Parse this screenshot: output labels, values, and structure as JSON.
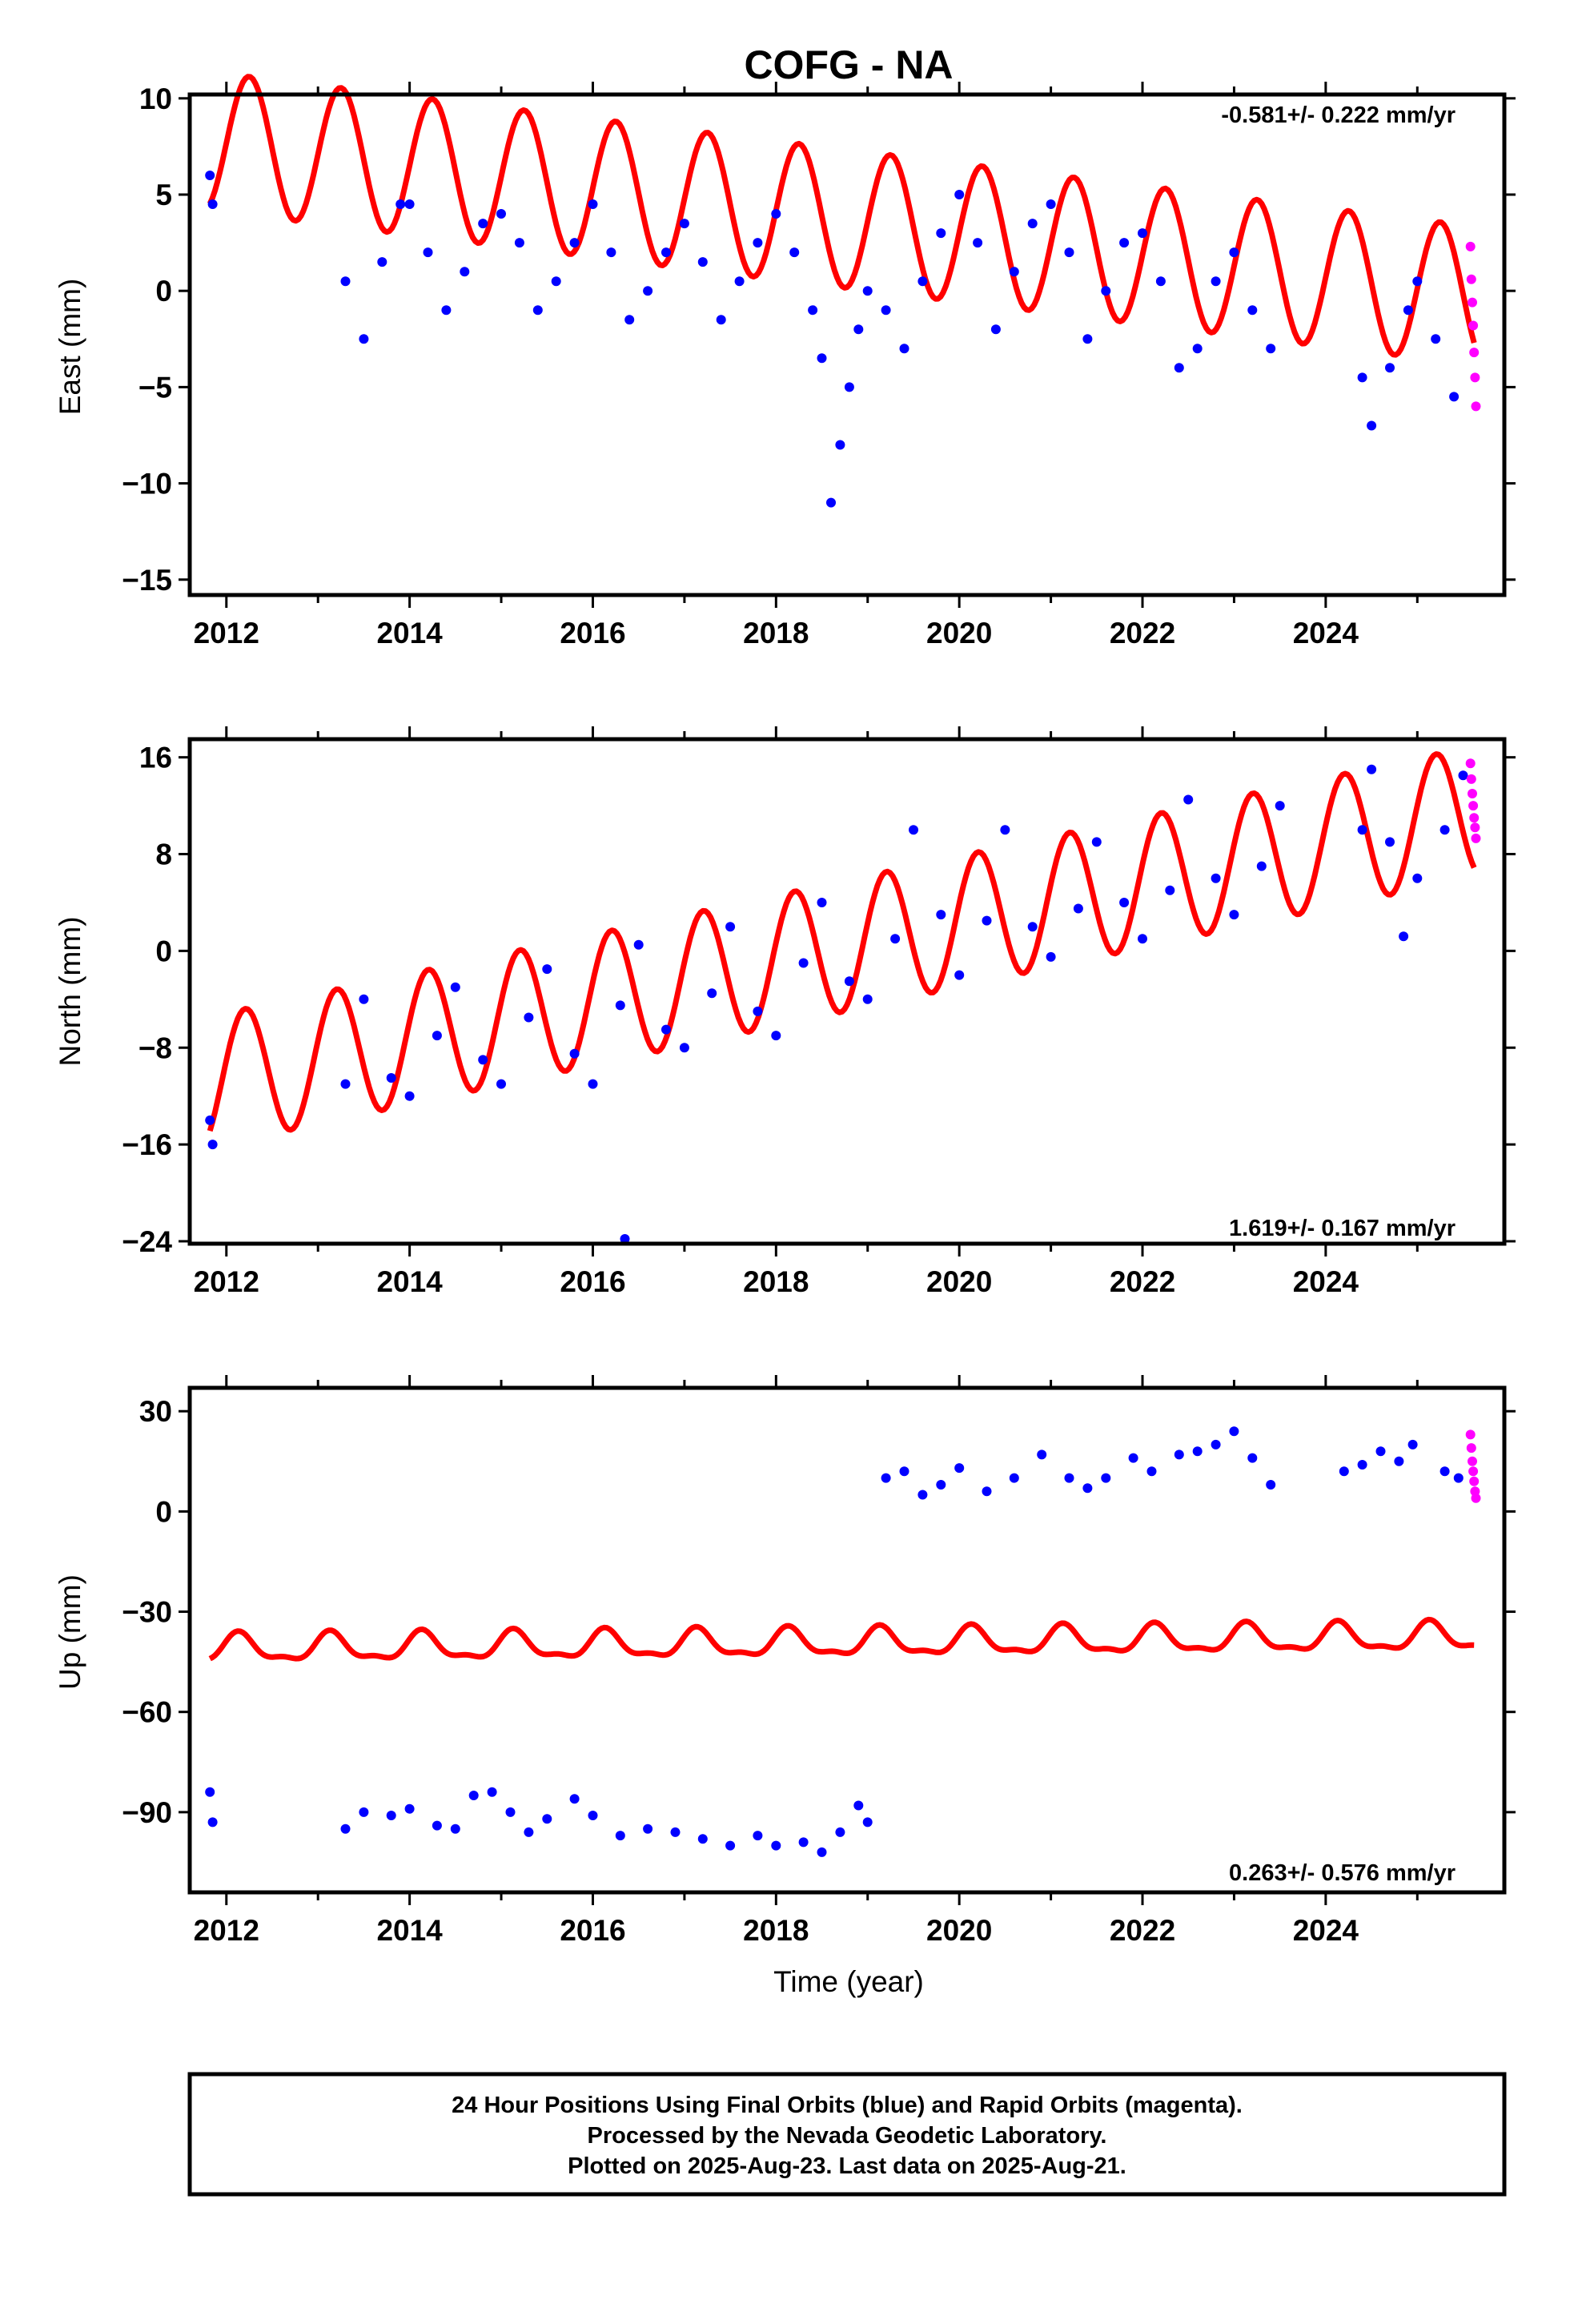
{
  "colors": {
    "final_orbits": "#0000ff",
    "rapid_orbits": "#ff00ff",
    "model": "#ff0000",
    "frame": "#000000"
  },
  "footer": {
    "line1": "24 Hour Positions Using Final Orbits (blue) and Rapid Orbits (magenta).",
    "line2": "Processed by the Nevada Geodetic Laboratory.",
    "line3": "Plotted on 2025-Aug-23. Last data on 2025-Aug-21."
  },
  "chart_data": [
    {
      "type": "scatter",
      "title": "COFG - NA",
      "xlabel": "",
      "ylabel": "East (mm)",
      "xlim": [
        2011.6,
        2025.95
      ],
      "ylim": [
        -15.8,
        10.2
      ],
      "xticks": [
        2012,
        2014,
        2016,
        2018,
        2020,
        2022,
        2024
      ],
      "yticks": [
        10,
        5,
        0,
        -5,
        -10,
        -15
      ],
      "yticklabels": [
        "10",
        "5",
        "0",
        "−5",
        "−10",
        "−15"
      ],
      "rate_label": "-0.581+/- 0.222 mm/yr",
      "rate_position": "top-right",
      "series": [
        {
          "role": "final_orbits",
          "x": [
            2011.82,
            2011.85,
            2013.3,
            2013.5,
            2013.7,
            2013.9,
            2014.0,
            2014.2,
            2014.4,
            2014.6,
            2014.8,
            2015.0,
            2015.2,
            2015.4,
            2015.6,
            2015.8,
            2016.0,
            2016.2,
            2016.4,
            2016.6,
            2016.8,
            2017.0,
            2017.2,
            2017.4,
            2017.6,
            2017.8,
            2018.0,
            2018.2,
            2018.4,
            2018.5,
            2018.6,
            2018.7,
            2018.8,
            2018.9,
            2019.0,
            2019.2,
            2019.4,
            2019.6,
            2019.8,
            2020.0,
            2020.2,
            2020.4,
            2020.6,
            2020.8,
            2021.0,
            2021.2,
            2021.4,
            2021.6,
            2021.8,
            2022.0,
            2022.2,
            2022.4,
            2022.6,
            2022.8,
            2023.0,
            2023.2,
            2023.4,
            2024.4,
            2024.5,
            2024.7,
            2024.9,
            2025.0,
            2025.2,
            2025.4
          ],
          "y": [
            6.0,
            4.5,
            0.5,
            -2.5,
            1.5,
            4.5,
            4.5,
            2.0,
            -1.0,
            1.0,
            3.5,
            4.0,
            2.5,
            -1.0,
            0.5,
            2.5,
            4.5,
            2.0,
            -1.5,
            0.0,
            2.0,
            3.5,
            1.5,
            -1.5,
            0.5,
            2.5,
            4.0,
            2.0,
            -1.0,
            -3.5,
            -11.0,
            -8.0,
            -5.0,
            -2.0,
            0.0,
            -1.0,
            -3.0,
            0.5,
            3.0,
            5.0,
            2.5,
            -2.0,
            1.0,
            3.5,
            4.5,
            2.0,
            -2.5,
            0.0,
            2.5,
            3.0,
            0.5,
            -4.0,
            -3.0,
            0.5,
            2.0,
            -1.0,
            -3.0,
            -4.5,
            -7.0,
            -4.0,
            -1.0,
            0.5,
            -2.5,
            -5.5
          ]
        },
        {
          "role": "rapid_orbits",
          "x": [
            2025.58,
            2025.59,
            2025.6,
            2025.61,
            2025.62,
            2025.63,
            2025.64
          ],
          "y": [
            2.3,
            0.6,
            -0.6,
            -1.8,
            -3.2,
            -4.5,
            -6.0
          ]
        }
      ],
      "model": {
        "mean": 3.9,
        "trend_per_year": -0.581,
        "amp_sin": 3.6,
        "amp_cos": 0.0,
        "start": 2011.82,
        "end": 2025.62
      }
    },
    {
      "type": "scatter",
      "title": "",
      "xlabel": "",
      "ylabel": "North (mm)",
      "xlim": [
        2011.6,
        2025.95
      ],
      "ylim": [
        -24.2,
        17.5
      ],
      "xticks": [
        2012,
        2014,
        2016,
        2018,
        2020,
        2022,
        2024
      ],
      "yticks": [
        16,
        8,
        0,
        -8,
        -16,
        -24
      ],
      "yticklabels": [
        "16",
        "8",
        "0",
        "−8",
        "−16",
        "−24"
      ],
      "rate_label": "1.619+/- 0.167 mm/yr",
      "rate_position": "bottom-right",
      "series": [
        {
          "role": "final_orbits",
          "x": [
            2011.82,
            2011.85,
            2013.3,
            2013.5,
            2013.8,
            2014.0,
            2014.3,
            2014.5,
            2014.8,
            2015.0,
            2015.3,
            2015.5,
            2015.8,
            2016.0,
            2016.3,
            2016.5,
            2016.8,
            2017.0,
            2017.3,
            2017.5,
            2017.8,
            2018.0,
            2018.3,
            2018.5,
            2018.8,
            2019.0,
            2019.3,
            2019.5,
            2019.8,
            2020.0,
            2020.3,
            2020.5,
            2020.8,
            2021.0,
            2021.3,
            2021.5,
            2021.8,
            2022.0,
            2022.3,
            2022.5,
            2022.8,
            2023.0,
            2023.3,
            2023.5,
            2024.4,
            2024.5,
            2024.7,
            2024.85,
            2025.0,
            2025.3,
            2025.5
          ],
          "y": [
            -14.0,
            -16.0,
            -11.0,
            -4.0,
            -10.5,
            -12.0,
            -7.0,
            -3.0,
            -9.0,
            -11.0,
            -5.5,
            -1.5,
            -8.5,
            -11.0,
            -4.5,
            0.5,
            -6.5,
            -8.0,
            -3.5,
            2.0,
            -5.0,
            -7.0,
            -1.0,
            4.0,
            -2.5,
            -4.0,
            1.0,
            10.0,
            3.0,
            -2.0,
            2.5,
            10.0,
            2.0,
            -0.5,
            3.5,
            9.0,
            4.0,
            1.0,
            5.0,
            12.5,
            6.0,
            3.0,
            7.0,
            12.0,
            10.0,
            15.0,
            9.0,
            1.2,
            6.0,
            10.0,
            14.5
          ]
        },
        {
          "role": "final_orbits",
          "x": [
            2016.35
          ],
          "y": [
            -23.8
          ]
        },
        {
          "role": "rapid_orbits",
          "x": [
            2025.58,
            2025.59,
            2025.6,
            2025.61,
            2025.62,
            2025.63,
            2025.64
          ],
          "y": [
            15.5,
            14.2,
            13.0,
            12.0,
            11.0,
            10.2,
            9.3
          ]
        }
      ],
      "model": {
        "mean": 0.0,
        "trend_per_year": 1.619,
        "amp_sin": 5.2,
        "amp_cos": 1.5,
        "start": 2011.82,
        "end": 2025.62
      }
    },
    {
      "type": "scatter",
      "title": "",
      "xlabel": "Time (year)",
      "ylabel": "Up (mm)",
      "xlim": [
        2011.6,
        2025.95
      ],
      "ylim": [
        -114,
        37
      ],
      "xticks": [
        2012,
        2014,
        2016,
        2018,
        2020,
        2022,
        2024
      ],
      "yticks": [
        30,
        0,
        -30,
        -60,
        -90
      ],
      "yticklabels": [
        "30",
        "0",
        "−30",
        "−60",
        "−90"
      ],
      "rate_label": "0.263+/- 0.576 mm/yr",
      "rate_position": "bottom-right",
      "series": [
        {
          "role": "final_orbits",
          "x": [
            2011.82,
            2011.85,
            2013.3,
            2013.5,
            2013.8,
            2014.0,
            2014.3,
            2014.5,
            2014.7,
            2014.9,
            2015.1,
            2015.3,
            2015.5,
            2015.8,
            2016.0,
            2016.3,
            2016.6,
            2016.9,
            2017.2,
            2017.5,
            2017.8,
            2018.0,
            2018.3,
            2018.5,
            2018.7,
            2018.9,
            2019.0,
            2019.2,
            2019.4,
            2019.6,
            2019.8,
            2020.0,
            2020.3,
            2020.6,
            2020.9,
            2021.2,
            2021.4,
            2021.6,
            2021.9,
            2022.1,
            2022.4,
            2022.6,
            2022.8,
            2023.0,
            2023.2,
            2023.4,
            2024.2,
            2024.4,
            2024.6,
            2024.8,
            2024.95,
            2025.3,
            2025.45
          ],
          "y": [
            -84,
            -93,
            -95,
            -90,
            -91,
            -89,
            -94,
            -95,
            -85,
            -84,
            -90,
            -96,
            -92,
            -86,
            -91,
            -97,
            -95,
            -96,
            -98,
            -100,
            -97,
            -100,
            -99,
            -102,
            -96,
            -88,
            -93,
            10,
            12,
            5,
            8,
            13,
            6,
            10,
            17,
            10,
            7,
            10,
            16,
            12,
            17,
            18,
            20,
            24,
            16,
            8,
            12,
            14,
            18,
            15,
            20,
            12,
            10
          ]
        },
        {
          "role": "rapid_orbits",
          "x": [
            2025.58,
            2025.59,
            2025.6,
            2025.61,
            2025.62,
            2025.63,
            2025.64
          ],
          "y": [
            23,
            19,
            15,
            12,
            9,
            6,
            4
          ]
        }
      ],
      "model": {
        "mean": -39.5,
        "trend_per_year": 0.263,
        "amp_sin": 3.0,
        "amp_cos": 2.5,
        "semi_amp": 1.5,
        "start": 2011.82,
        "end": 2025.62
      }
    }
  ]
}
